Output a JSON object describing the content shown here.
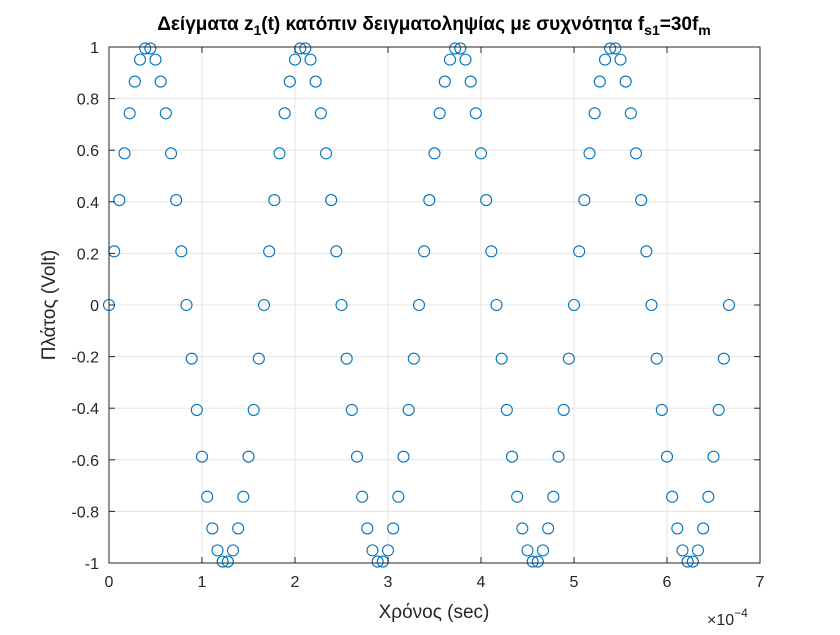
{
  "chart_data": {
    "type": "scatter",
    "title": {
      "main": "Δείγματα z",
      "sub1": "1",
      "mid": "(t) κατόπιν δειγματοληψίας με συχνότητα f",
      "sub2": "s1",
      "tail": "=30f",
      "sub3": "m"
    },
    "xlabel": "Χρόνος (sec)",
    "ylabel": "Πλάτος (Volt)",
    "x_exponent": {
      "base": "×10",
      "power": "−4"
    },
    "xlim": [
      0,
      7
    ],
    "ylim": [
      -1,
      1
    ],
    "xticks": [
      0,
      1,
      2,
      3,
      4,
      5,
      6,
      7
    ],
    "xtick_labels": [
      "0",
      "1",
      "2",
      "3",
      "4",
      "5",
      "6",
      "7"
    ],
    "yticks": [
      -1,
      -0.8,
      -0.6,
      -0.4,
      -0.2,
      0,
      0.2,
      0.4,
      0.6,
      0.8,
      1
    ],
    "ytick_labels": [
      "-1",
      "-0.8",
      "-0.6",
      "-0.4",
      "-0.2",
      "0",
      "0.2",
      "0.4",
      "0.6",
      "0.8",
      "1"
    ],
    "grid": true,
    "marker": "circle",
    "color": "#0072BD",
    "x_unit_note": "x values in units of 1e-4 s (axis multiplier ×10^-4)",
    "x": [
      0,
      0.0556,
      0.1111,
      0.1667,
      0.2222,
      0.2778,
      0.3333,
      0.3889,
      0.4444,
      0.5,
      0.5556,
      0.6111,
      0.6667,
      0.7222,
      0.7778,
      0.8333,
      0.8889,
      0.9444,
      1.0,
      1.0556,
      1.1111,
      1.1667,
      1.2222,
      1.2778,
      1.3333,
      1.3889,
      1.4444,
      1.5,
      1.5556,
      1.6111,
      1.6667,
      1.7222,
      1.7778,
      1.8333,
      1.8889,
      1.9444,
      2.0,
      2.0556,
      2.1111,
      2.1667,
      2.2222,
      2.2778,
      2.3333,
      2.3889,
      2.4444,
      2.5,
      2.5556,
      2.6111,
      2.6667,
      2.7222,
      2.7778,
      2.8333,
      2.8889,
      2.9444,
      3.0,
      3.0556,
      3.1111,
      3.1667,
      3.2222,
      3.2778,
      3.3333,
      3.3889,
      3.4444,
      3.5,
      3.5556,
      3.6111,
      3.6667,
      3.7222,
      3.7778,
      3.8333,
      3.8889,
      3.9444,
      4.0,
      4.0556,
      4.1111,
      4.1667,
      4.2222,
      4.2778,
      4.3333,
      4.3889,
      4.4444,
      4.5,
      4.5556,
      4.6111,
      4.6667,
      4.7222,
      4.7778,
      4.8333,
      4.8889,
      4.9444,
      5.0,
      5.0556,
      5.1111,
      5.1667,
      5.2222,
      5.2778,
      5.3333,
      5.3889,
      5.4444,
      5.5,
      5.5556,
      5.6111,
      5.6667,
      5.7222,
      5.7778,
      5.8333,
      5.8889,
      5.9444,
      6.0,
      6.0556,
      6.1111,
      6.1667,
      6.2222,
      6.2778,
      6.3333,
      6.3889,
      6.4444,
      6.5,
      6.5556,
      6.6111,
      6.6667
    ],
    "y": [
      0,
      0.2079,
      0.4067,
      0.5878,
      0.7431,
      0.866,
      0.9511,
      0.9945,
      0.9945,
      0.9511,
      0.866,
      0.7431,
      0.5878,
      0.4067,
      0.2079,
      0,
      -0.2079,
      -0.4067,
      -0.5878,
      -0.7431,
      -0.866,
      -0.9511,
      -0.9945,
      -0.9945,
      -0.9511,
      -0.866,
      -0.7431,
      -0.5878,
      -0.4067,
      -0.2079,
      0,
      0.2079,
      0.4067,
      0.5878,
      0.7431,
      0.866,
      0.9511,
      0.9945,
      0.9945,
      0.9511,
      0.866,
      0.7431,
      0.5878,
      0.4067,
      0.2079,
      0,
      -0.2079,
      -0.4067,
      -0.5878,
      -0.7431,
      -0.866,
      -0.9511,
      -0.9945,
      -0.9945,
      -0.9511,
      -0.866,
      -0.7431,
      -0.5878,
      -0.4067,
      -0.2079,
      0,
      0.2079,
      0.4067,
      0.5878,
      0.7431,
      0.866,
      0.9511,
      0.9945,
      0.9945,
      0.9511,
      0.866,
      0.7431,
      0.5878,
      0.4067,
      0.2079,
      0,
      -0.2079,
      -0.4067,
      -0.5878,
      -0.7431,
      -0.866,
      -0.9511,
      -0.9945,
      -0.9945,
      -0.9511,
      -0.866,
      -0.7431,
      -0.5878,
      -0.4067,
      -0.2079,
      0,
      0.2079,
      0.4067,
      0.5878,
      0.7431,
      0.866,
      0.9511,
      0.9945,
      0.9945,
      0.9511,
      0.866,
      0.7431,
      0.5878,
      0.4067,
      0.2079,
      0,
      -0.2079,
      -0.4067,
      -0.5878,
      -0.7431,
      -0.866,
      -0.9511,
      -0.9945,
      -0.9945,
      -0.9511,
      -0.866,
      -0.7431,
      -0.5878,
      -0.4067,
      -0.2079,
      0
    ]
  }
}
